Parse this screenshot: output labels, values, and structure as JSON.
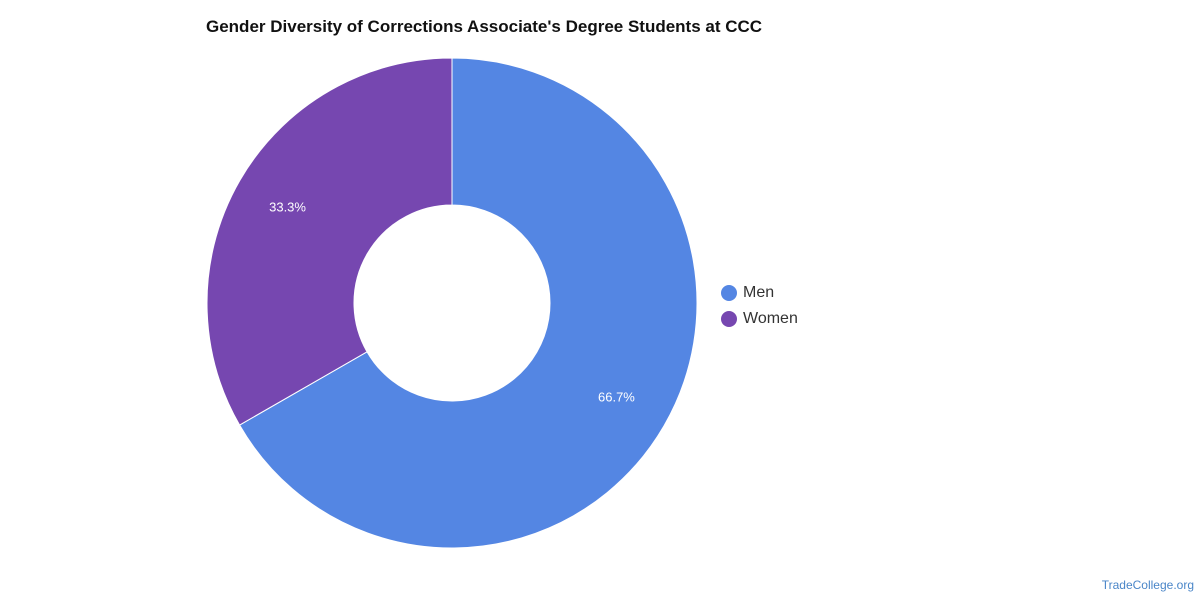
{
  "chart_data": {
    "type": "pie",
    "variant": "donut",
    "title": "Gender Diversity of Corrections Associate's Degree Students at CCC",
    "categories": [
      "Men",
      "Women"
    ],
    "values": [
      66.7,
      33.3
    ],
    "value_labels": [
      "66.7%",
      "33.3%"
    ],
    "colors": [
      "#5486e3",
      "#7647b0"
    ],
    "legend_position": "right",
    "start_angle": "12 o'clock, clockwise"
  },
  "watermark": "TradeCollege.org"
}
